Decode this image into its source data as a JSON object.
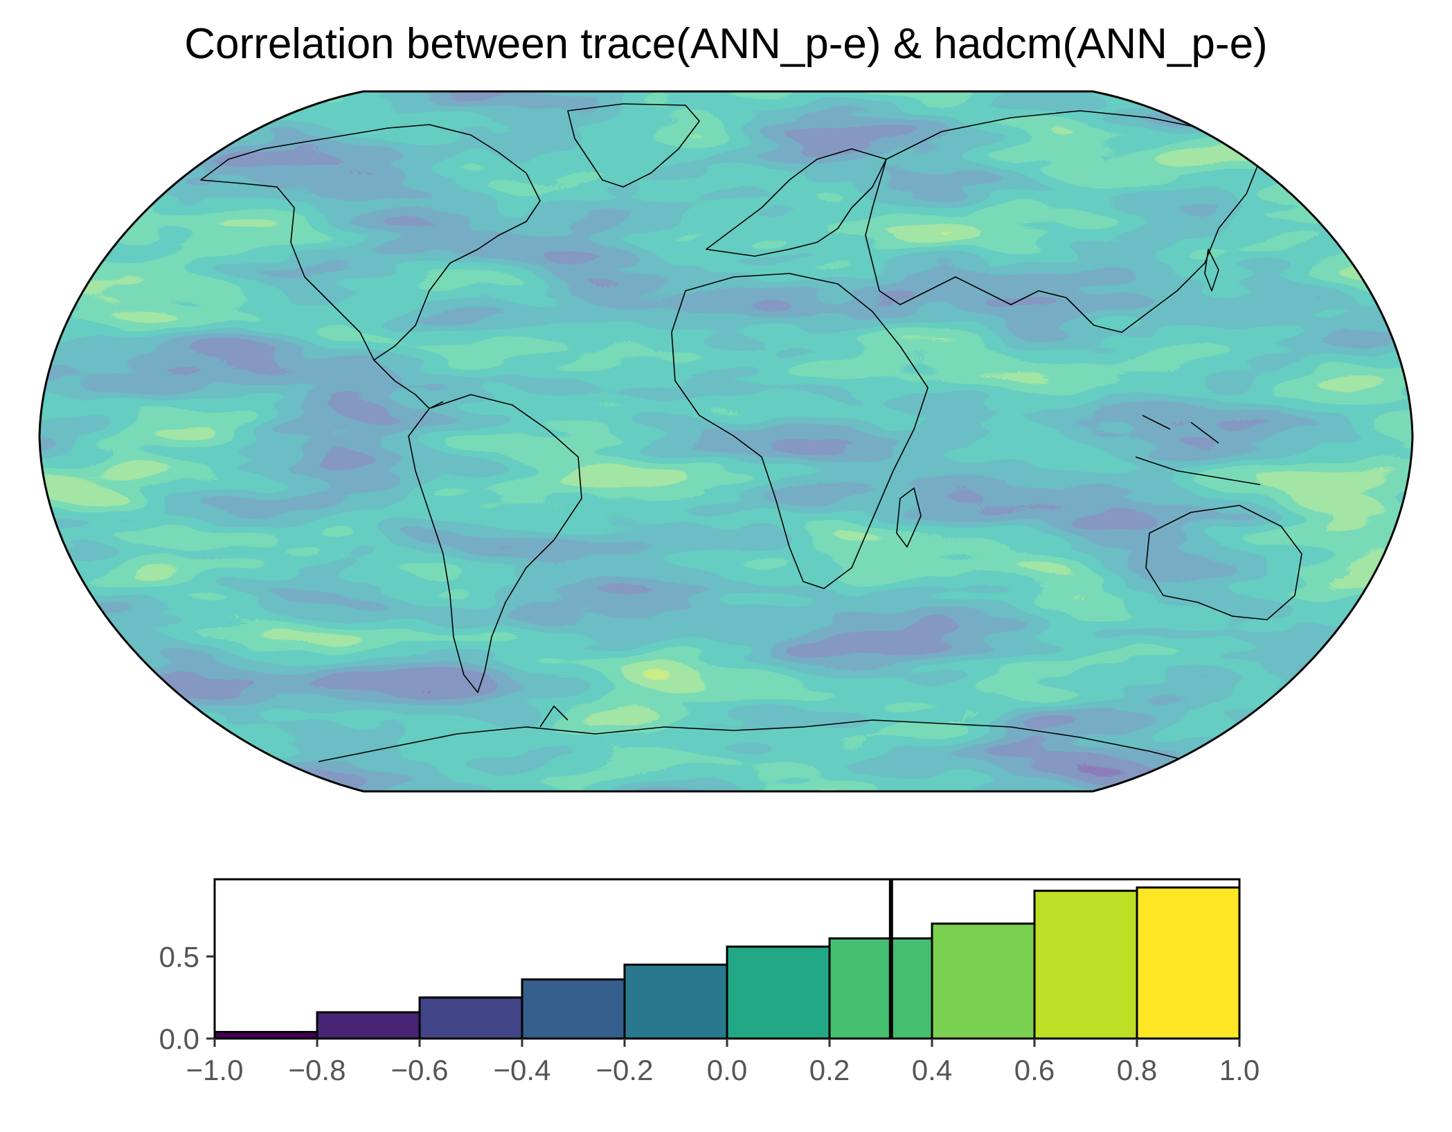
{
  "title": "Correlation between trace(ANN_p-e) & hadcm(ANN_p-e)",
  "colors": {
    "viridis": [
      "#440154",
      "#482475",
      "#414487",
      "#355f8d",
      "#2a788e",
      "#21918c",
      "#22a884",
      "#44bf70",
      "#7ad151",
      "#bddf26",
      "#fde725"
    ]
  },
  "chart_data": [
    {
      "type": "heatmap",
      "projection": "robinson",
      "colormap": "viridis",
      "value_range": [
        -1.0,
        1.0
      ],
      "features": [
        "coastlines"
      ]
    },
    {
      "type": "bar",
      "bin_edges": [
        -1.0,
        -0.8,
        -0.6,
        -0.4,
        -0.2,
        0.0,
        0.2,
        0.4,
        0.6,
        0.8,
        1.0
      ],
      "values": [
        0.04,
        0.16,
        0.25,
        0.36,
        0.45,
        0.56,
        0.61,
        0.7,
        0.9,
        0.92
      ],
      "xlim": [
        -1.0,
        1.0
      ],
      "ylim": [
        0.0,
        0.97
      ],
      "xticks": [
        "−1.0",
        "−0.8",
        "−0.6",
        "−0.4",
        "−0.2",
        "0.0",
        "0.2",
        "0.4",
        "0.6",
        "0.8",
        "1.0"
      ],
      "xtick_values": [
        -1.0,
        -0.8,
        -0.6,
        -0.4,
        -0.2,
        0.0,
        0.2,
        0.4,
        0.6,
        0.8,
        1.0
      ],
      "yticks": [
        "0.0",
        "0.5"
      ],
      "ytick_values": [
        0.0,
        0.5
      ],
      "vline": 0.32,
      "grid": false
    }
  ]
}
